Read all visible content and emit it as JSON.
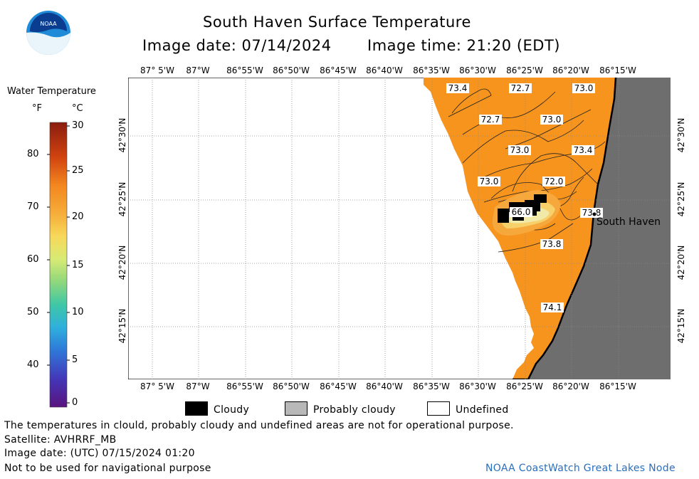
{
  "header": {
    "title": "South Haven Surface Temperature",
    "image_date": "Image date: 07/14/2024",
    "image_time": "Image time: 21:20 (EDT)"
  },
  "logo": {
    "text": "NOAA",
    "colors": {
      "outer": "#1f8ad8",
      "inner": "#0a3d8f"
    }
  },
  "colorbar": {
    "title": "Water Temperature",
    "unit_f": "°F",
    "unit_c": "°C",
    "f_ticks": [
      "80",
      "70",
      "60",
      "50",
      "40"
    ],
    "c_ticks": [
      "30",
      "25",
      "20",
      "15",
      "10",
      "5",
      "0"
    ]
  },
  "map": {
    "lon_labels": [
      "87° 5'W",
      "87°W",
      "86°55'W",
      "86°50'W",
      "86°45'W",
      "86°40'W",
      "86°35'W",
      "86°30'W",
      "86°25'W",
      "86°20'W",
      "86°15'W"
    ],
    "lat_labels": [
      "42°30'N",
      "42°25'N",
      "42°20'N",
      "42°15'N"
    ],
    "city": "South Haven",
    "colors": {
      "water": "#f7941d",
      "land": "#6e6e6e",
      "cloud": "#000000",
      "grid": "#888888"
    },
    "contour_labels": [
      "73.4",
      "72.7",
      "73.0",
      "72.7",
      "73.0",
      "73.0",
      "73.4",
      "73.0",
      "72.0",
      "66.0",
      "73.8",
      "73.8",
      "74.1"
    ]
  },
  "legend": {
    "cloudy": "Cloudy",
    "probably_cloudy": "Probably cloudy",
    "undefined": "Undefined"
  },
  "footer": {
    "note": "The temperatures in clould, probably cloudy and undefined areas are not for operational purpose.",
    "satellite": "Satellite: AVHRRF_MB",
    "utc_date": "Image date: (UTC) 07/15/2024  01:20",
    "nav_warning": "Not to be used for navigational purpose",
    "credit": "NOAA CoastWatch Great Lakes Node"
  }
}
